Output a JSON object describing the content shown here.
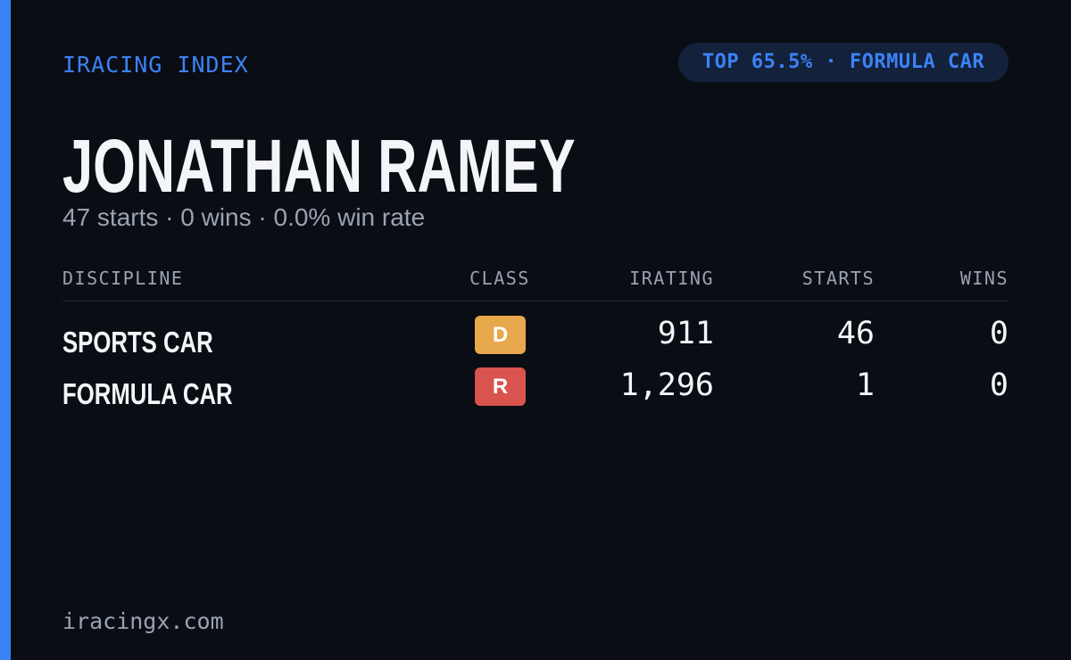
{
  "header": {
    "brand": "IRACING INDEX",
    "badge": "TOP 65.5% · FORMULA CAR"
  },
  "player": {
    "name": "JONATHAN RAMEY",
    "summary": "47 starts · 0 wins · 0.0% win rate"
  },
  "table": {
    "columns": [
      "DISCIPLINE",
      "CLASS",
      "IRATING",
      "STARTS",
      "WINS"
    ],
    "rows": [
      {
        "discipline": "SPORTS CAR",
        "class": "D",
        "class_color": "#e8a84c",
        "irating": "911",
        "starts": "46",
        "wins": "0"
      },
      {
        "discipline": "FORMULA CAR",
        "class": "R",
        "class_color": "#d9534f",
        "irating": "1,296",
        "starts": "1",
        "wins": "0"
      }
    ]
  },
  "footer": {
    "site": "iracingx.com"
  }
}
